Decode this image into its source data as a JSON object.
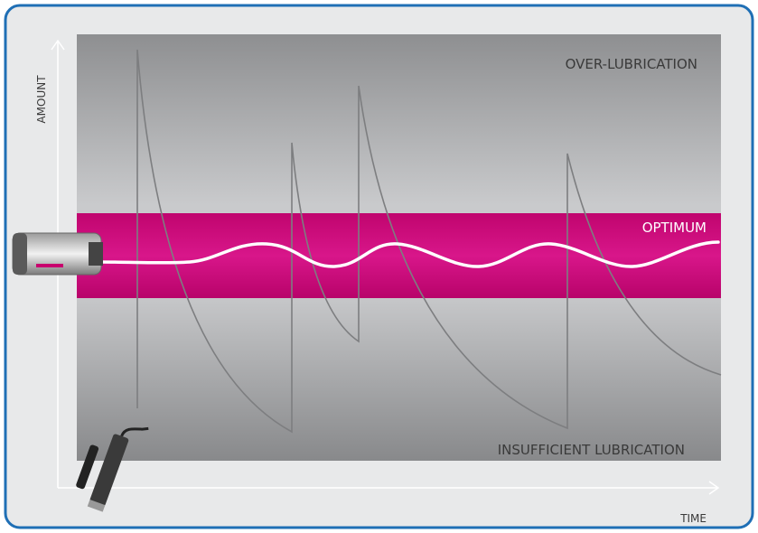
{
  "axes": {
    "y_label": "AMOUNT",
    "x_label": "TIME"
  },
  "zones": {
    "top": "OVER-LUBRICATION",
    "middle": "OPTIMUM",
    "bottom": "INSUFFICIENT LUBRICATION"
  }
}
